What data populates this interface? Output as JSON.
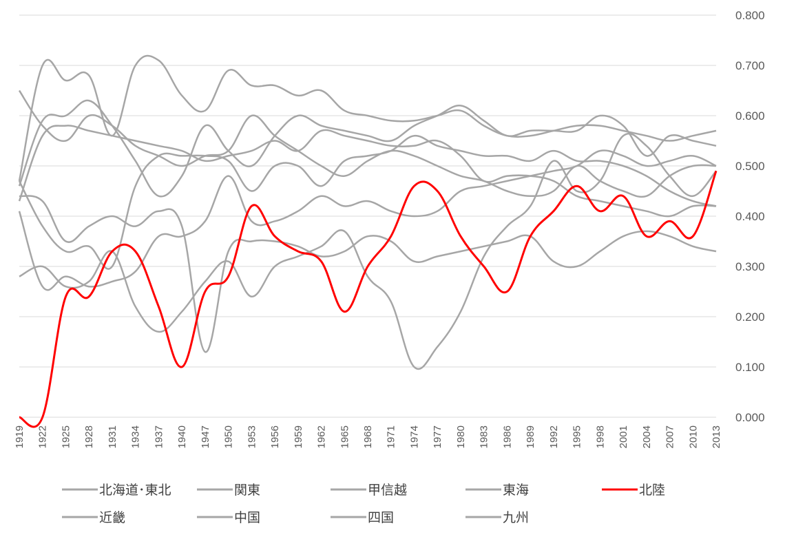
{
  "chart_data": {
    "type": "line",
    "title": "",
    "xlabel": "",
    "ylabel": "",
    "ylim": [
      0,
      0.8
    ],
    "y_ticks": [
      "0.000",
      "0.100",
      "0.200",
      "0.300",
      "0.400",
      "0.500",
      "0.600",
      "0.700",
      "0.800"
    ],
    "y_axis_position": "right",
    "grid": true,
    "legend_position": "bottom",
    "x_ticks": [
      "1919",
      "1922",
      "1925",
      "1928",
      "1931",
      "1934",
      "1937",
      "1940",
      "1947",
      "1950",
      "1953",
      "1956",
      "1959",
      "1962",
      "1965",
      "1968",
      "1971",
      "1974",
      "1977",
      "1980",
      "1983",
      "1986",
      "1989",
      "1992",
      "1995",
      "1998",
      "2001",
      "2004",
      "2007",
      "2010",
      "2013"
    ],
    "colors": {
      "highlight": "#ff0000",
      "other": "#a6a6a6",
      "grid": "#d9d9d9",
      "text": "#595959"
    },
    "series": [
      {
        "name": "北海道･東北",
        "highlight": false,
        "values": [
          0.65,
          0.58,
          0.55,
          0.6,
          0.58,
          0.54,
          0.52,
          0.5,
          0.52,
          0.53,
          0.6,
          0.56,
          0.53,
          0.5,
          0.48,
          0.51,
          0.53,
          0.52,
          0.5,
          0.48,
          0.47,
          0.45,
          0.44,
          0.45,
          0.5,
          0.47,
          0.45,
          0.44,
          0.48,
          0.5,
          0.5
        ]
      },
      {
        "name": "関東",
        "highlight": false,
        "values": [
          0.47,
          0.7,
          0.67,
          0.68,
          0.56,
          0.7,
          0.71,
          0.64,
          0.61,
          0.69,
          0.66,
          0.66,
          0.64,
          0.65,
          0.61,
          0.6,
          0.59,
          0.59,
          0.6,
          0.61,
          0.58,
          0.56,
          0.56,
          0.57,
          0.58,
          0.58,
          0.57,
          0.56,
          0.55,
          0.56,
          0.57
        ]
      },
      {
        "name": "甲信越",
        "highlight": false,
        "values": [
          0.46,
          0.59,
          0.6,
          0.63,
          0.58,
          0.51,
          0.44,
          0.48,
          0.58,
          0.53,
          0.5,
          0.56,
          0.6,
          0.58,
          0.57,
          0.56,
          0.55,
          0.58,
          0.6,
          0.62,
          0.59,
          0.56,
          0.57,
          0.57,
          0.57,
          0.6,
          0.58,
          0.52,
          0.56,
          0.55,
          0.54
        ]
      },
      {
        "name": "東海",
        "highlight": false,
        "values": [
          0.43,
          0.56,
          0.58,
          0.57,
          0.56,
          0.55,
          0.54,
          0.53,
          0.51,
          0.52,
          0.53,
          0.55,
          0.53,
          0.57,
          0.56,
          0.55,
          0.54,
          0.54,
          0.55,
          0.52,
          0.47,
          0.48,
          0.48,
          0.47,
          0.44,
          0.43,
          0.42,
          0.41,
          0.4,
          0.42,
          0.42
        ]
      },
      {
        "name": "北陸",
        "highlight": true,
        "values": [
          0.0,
          0.0,
          0.24,
          0.24,
          0.33,
          0.33,
          0.22,
          0.1,
          0.25,
          0.28,
          0.42,
          0.36,
          0.33,
          0.31,
          0.21,
          0.3,
          0.36,
          0.46,
          0.45,
          0.36,
          0.3,
          0.25,
          0.36,
          0.41,
          0.46,
          0.41,
          0.44,
          0.36,
          0.39,
          0.36,
          0.49
        ]
      },
      {
        "name": "近畿",
        "highlight": false,
        "values": [
          0.28,
          0.3,
          0.26,
          0.27,
          0.33,
          0.22,
          0.17,
          0.21,
          0.27,
          0.31,
          0.24,
          0.3,
          0.32,
          0.34,
          0.37,
          0.28,
          0.23,
          0.1,
          0.14,
          0.21,
          0.32,
          0.38,
          0.42,
          0.51,
          0.45,
          0.47,
          0.56,
          0.54,
          0.48,
          0.44,
          0.49
        ]
      },
      {
        "name": "中国",
        "highlight": false,
        "values": [
          0.44,
          0.43,
          0.35,
          0.38,
          0.4,
          0.38,
          0.41,
          0.38,
          0.13,
          0.33,
          0.35,
          0.35,
          0.34,
          0.32,
          0.33,
          0.36,
          0.35,
          0.31,
          0.32,
          0.33,
          0.34,
          0.35,
          0.36,
          0.31,
          0.3,
          0.33,
          0.36,
          0.37,
          0.36,
          0.34,
          0.33
        ]
      },
      {
        "name": "四国",
        "highlight": false,
        "values": [
          0.41,
          0.26,
          0.28,
          0.26,
          0.27,
          0.29,
          0.36,
          0.36,
          0.39,
          0.48,
          0.39,
          0.39,
          0.41,
          0.44,
          0.42,
          0.43,
          0.41,
          0.4,
          0.41,
          0.45,
          0.46,
          0.47,
          0.48,
          0.49,
          0.5,
          0.53,
          0.52,
          0.5,
          0.51,
          0.52,
          0.5
        ]
      },
      {
        "name": "九州",
        "highlight": false,
        "values": [
          0.47,
          0.38,
          0.33,
          0.34,
          0.3,
          0.46,
          0.52,
          0.52,
          0.52,
          0.51,
          0.45,
          0.5,
          0.5,
          0.46,
          0.51,
          0.52,
          0.53,
          0.56,
          0.54,
          0.53,
          0.52,
          0.52,
          0.51,
          0.53,
          0.51,
          0.51,
          0.5,
          0.48,
          0.45,
          0.43,
          0.42
        ]
      }
    ]
  }
}
